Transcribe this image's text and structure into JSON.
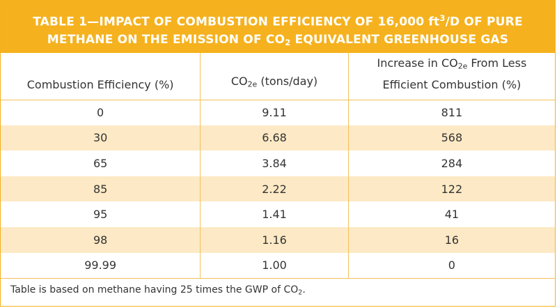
{
  "title": {
    "line1_prefix": "TABLE 1—IMPACT OF COMBUSTION EFFICIENCY OF 16,000 ft",
    "line1_sup": "3",
    "line1_suffix": "/D OF PURE",
    "line2_prefix": "METHANE ON THE EMISSION OF CO",
    "line2_sub": "2",
    "line2_suffix": " EQUIVALENT GREENHOUSE GAS"
  },
  "headers": {
    "col1": "Combustion Efficiency (%)",
    "col2_prefix": "CO",
    "col2_sub": "2e",
    "col2_suffix": " (tons/day)",
    "col3_line1_prefix": "Increase in CO",
    "col3_line1_sub": "2e",
    "col3_line1_suffix": " From Less",
    "col3_line2": "Efficient Combustion (%)"
  },
  "rows": [
    [
      "0",
      "9.11",
      "811"
    ],
    [
      "30",
      "6.68",
      "568"
    ],
    [
      "65",
      "3.84",
      "284"
    ],
    [
      "85",
      "2.22",
      "122"
    ],
    [
      "95",
      "1.41",
      "41"
    ],
    [
      "98",
      "1.16",
      "16"
    ],
    [
      "99.99",
      "1.00",
      "0"
    ]
  ],
  "footnote": {
    "prefix": "Table is based on methane having 25 times the GWP of CO",
    "sub": "2",
    "suffix": "."
  },
  "colors": {
    "accent": "#f5b21e",
    "stripe": "#fde9c5",
    "text": "#333333"
  }
}
